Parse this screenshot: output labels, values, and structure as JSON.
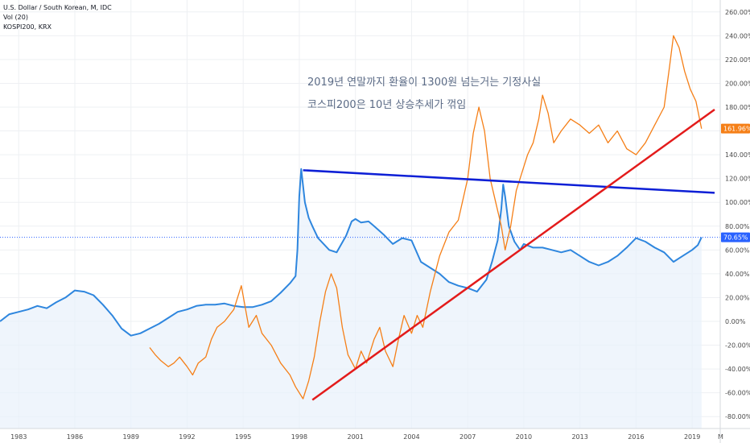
{
  "chart_data": {
    "type": "line",
    "legend": [
      "U.S. Dollar / South Korean, M, IDC",
      "Vol (20)",
      "KOSPI200, KRX"
    ],
    "annotations": [
      "2019년 연말까지 환율이 1300원 넘는거는 기정사실",
      "코스피200은 10년 상승추세가 꺾임"
    ],
    "y_axis": {
      "unit": "%",
      "ylim": [
        -90,
        270
      ],
      "ticks": [
        "260.00%",
        "240.00%",
        "220.00%",
        "200.00%",
        "180.00%",
        "160.00%",
        "140.00%",
        "120.00%",
        "100.00%",
        "80.00%",
        "60.00%",
        "40.00%",
        "20.00%",
        "0.00%",
        "-20.00%",
        "-40.00%",
        "-60.00%",
        "-80.00%"
      ],
      "tick_values": [
        260,
        240,
        220,
        200,
        180,
        160,
        140,
        120,
        100,
        80,
        60,
        40,
        20,
        0,
        -20,
        -40,
        -60,
        -80
      ]
    },
    "x_axis": {
      "xlim": [
        1982,
        2020.5
      ],
      "ticks": [
        "1983",
        "1986",
        "1989",
        "1992",
        "1995",
        "1998",
        "2001",
        "2004",
        "2007",
        "2010",
        "2013",
        "2016",
        "2019"
      ],
      "tick_values": [
        1983,
        1986,
        1989,
        1992,
        1995,
        1998,
        2001,
        2004,
        2007,
        2010,
        2013,
        2016,
        2019
      ],
      "trailing_label": "M"
    },
    "last_values": [
      {
        "label": "161.96%",
        "value": 161.96,
        "color": "#f57f17"
      },
      {
        "label": "70.65%",
        "value": 70.65,
        "color": "#2962ff"
      }
    ],
    "series": [
      {
        "name": "U.S. Dollar / South Korean",
        "color": "#2e86de",
        "fill": true,
        "x": [
          1982.0,
          1982.5,
          1983.0,
          1983.5,
          1984.0,
          1984.5,
          1985.0,
          1985.5,
          1986.0,
          1986.5,
          1987.0,
          1987.5,
          1988.0,
          1988.5,
          1989.0,
          1989.5,
          1990.0,
          1990.5,
          1991.0,
          1991.5,
          1992.0,
          1992.5,
          1993.0,
          1993.5,
          1994.0,
          1994.5,
          1995.0,
          1995.5,
          1996.0,
          1996.5,
          1997.0,
          1997.5,
          1997.8,
          1997.9,
          1998.0,
          1998.1,
          1998.3,
          1998.5,
          1998.7,
          1999.0,
          1999.3,
          1999.6,
          2000.0,
          2000.5,
          2000.8,
          2001.0,
          2001.3,
          2001.7,
          2002.0,
          2002.5,
          2003.0,
          2003.5,
          2004.0,
          2004.5,
          2005.0,
          2005.5,
          2006.0,
          2006.5,
          2007.0,
          2007.5,
          2008.0,
          2008.3,
          2008.6,
          2008.8,
          2008.9,
          2009.0,
          2009.2,
          2009.5,
          2009.8,
          2010.0,
          2010.5,
          2011.0,
          2011.5,
          2012.0,
          2012.5,
          2013.0,
          2013.5,
          2014.0,
          2014.5,
          2015.0,
          2015.5,
          2016.0,
          2016.5,
          2017.0,
          2017.5,
          2018.0,
          2018.5,
          2019.0,
          2019.3,
          2019.5
        ],
        "values": [
          0,
          6,
          8,
          10,
          13,
          11,
          16,
          20,
          26,
          25,
          22,
          14,
          5,
          -6,
          -12,
          -10,
          -6,
          -2,
          3,
          8,
          10,
          13,
          14,
          14,
          15,
          13,
          12,
          12,
          14,
          17,
          24,
          32,
          38,
          60,
          105,
          128,
          100,
          87,
          80,
          70,
          65,
          60,
          58,
          72,
          84,
          86,
          83,
          84,
          80,
          73,
          65,
          70,
          68,
          50,
          45,
          40,
          33,
          30,
          28,
          25,
          35,
          50,
          68,
          95,
          115,
          105,
          80,
          67,
          60,
          65,
          62,
          62,
          60,
          58,
          60,
          55,
          50,
          47,
          50,
          55,
          62,
          70,
          67,
          62,
          58,
          50,
          55,
          60,
          64,
          70.65
        ]
      },
      {
        "name": "KOSPI200",
        "color": "#f57f17",
        "fill": false,
        "x": [
          1990.0,
          1990.3,
          1990.6,
          1991.0,
          1991.3,
          1991.6,
          1992.0,
          1992.3,
          1992.6,
          1993.0,
          1993.3,
          1993.6,
          1994.0,
          1994.5,
          1994.9,
          1995.3,
          1995.7,
          1996.0,
          1996.5,
          1997.0,
          1997.5,
          1997.8,
          1998.2,
          1998.5,
          1998.8,
          1999.1,
          1999.4,
          1999.7,
          2000.0,
          2000.3,
          2000.6,
          2001.0,
          2001.3,
          2001.6,
          2002.0,
          2002.3,
          2002.6,
          2003.0,
          2003.3,
          2003.6,
          2004.0,
          2004.3,
          2004.6,
          2005.0,
          2005.5,
          2006.0,
          2006.5,
          2007.0,
          2007.3,
          2007.6,
          2007.9,
          2008.2,
          2008.5,
          2008.8,
          2009.0,
          2009.3,
          2009.6,
          2009.9,
          2010.2,
          2010.5,
          2010.8,
          2011.0,
          2011.3,
          2011.6,
          2012.0,
          2012.5,
          2013.0,
          2013.5,
          2014.0,
          2014.5,
          2015.0,
          2015.5,
          2016.0,
          2016.5,
          2017.0,
          2017.5,
          2017.8,
          2018.0,
          2018.3,
          2018.6,
          2018.9,
          2019.2,
          2019.5
        ],
        "values": [
          -22,
          -28,
          -33,
          -38,
          -35,
          -30,
          -38,
          -45,
          -35,
          -30,
          -15,
          -5,
          0,
          10,
          30,
          -5,
          5,
          -10,
          -20,
          -35,
          -45,
          -55,
          -65,
          -50,
          -30,
          0,
          25,
          40,
          28,
          -5,
          -28,
          -40,
          -25,
          -35,
          -15,
          -5,
          -25,
          -38,
          -15,
          5,
          -10,
          5,
          -5,
          25,
          55,
          75,
          85,
          120,
          158,
          180,
          160,
          120,
          100,
          80,
          60,
          80,
          110,
          125,
          140,
          150,
          170,
          190,
          175,
          150,
          160,
          170,
          165,
          158,
          165,
          150,
          160,
          145,
          140,
          150,
          165,
          180,
          215,
          240,
          230,
          210,
          195,
          185,
          161.96
        ]
      }
    ],
    "trendlines": [
      {
        "name": "blue-trendline",
        "color": "#0d1fd6",
        "from": [
          1998.2,
          127
        ],
        "to": [
          2020.2,
          108
        ]
      },
      {
        "name": "red-trendline",
        "color": "#e31b1b",
        "from": [
          1998.7,
          -66
        ],
        "to": [
          2020.2,
          178
        ]
      }
    ],
    "reference_line": {
      "value": 70.65,
      "color": "#2962ff"
    }
  }
}
